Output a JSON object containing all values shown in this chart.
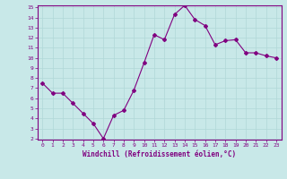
{
  "x": [
    0,
    1,
    2,
    3,
    4,
    5,
    6,
    7,
    8,
    9,
    10,
    11,
    12,
    13,
    14,
    15,
    16,
    17,
    18,
    19,
    20,
    21,
    22,
    23
  ],
  "y": [
    7.5,
    6.5,
    6.5,
    5.5,
    4.5,
    3.5,
    2.0,
    4.3,
    4.8,
    6.8,
    9.5,
    12.3,
    11.8,
    14.3,
    15.2,
    13.8,
    13.2,
    11.3,
    11.7,
    11.8,
    10.5,
    10.5,
    10.2,
    10.0
  ],
  "line_color": "#800080",
  "marker": "D",
  "marker_size": 2,
  "bg_color": "#c8e8e8",
  "grid_color": "#b0d8d8",
  "xlabel": "Windchill (Refroidissement éolien,°C)",
  "ylim": [
    2,
    15
  ],
  "xlim": [
    -0.5,
    23.5
  ],
  "yticks": [
    2,
    3,
    4,
    5,
    6,
    7,
    8,
    9,
    10,
    11,
    12,
    13,
    14,
    15
  ],
  "xticks": [
    0,
    1,
    2,
    3,
    4,
    5,
    6,
    7,
    8,
    9,
    10,
    11,
    12,
    13,
    14,
    15,
    16,
    17,
    18,
    19,
    20,
    21,
    22,
    23
  ],
  "tick_color": "#800080",
  "label_color": "#800080",
  "spine_color": "#800080",
  "tick_fontsize": 4.5,
  "xlabel_fontsize": 5.5
}
